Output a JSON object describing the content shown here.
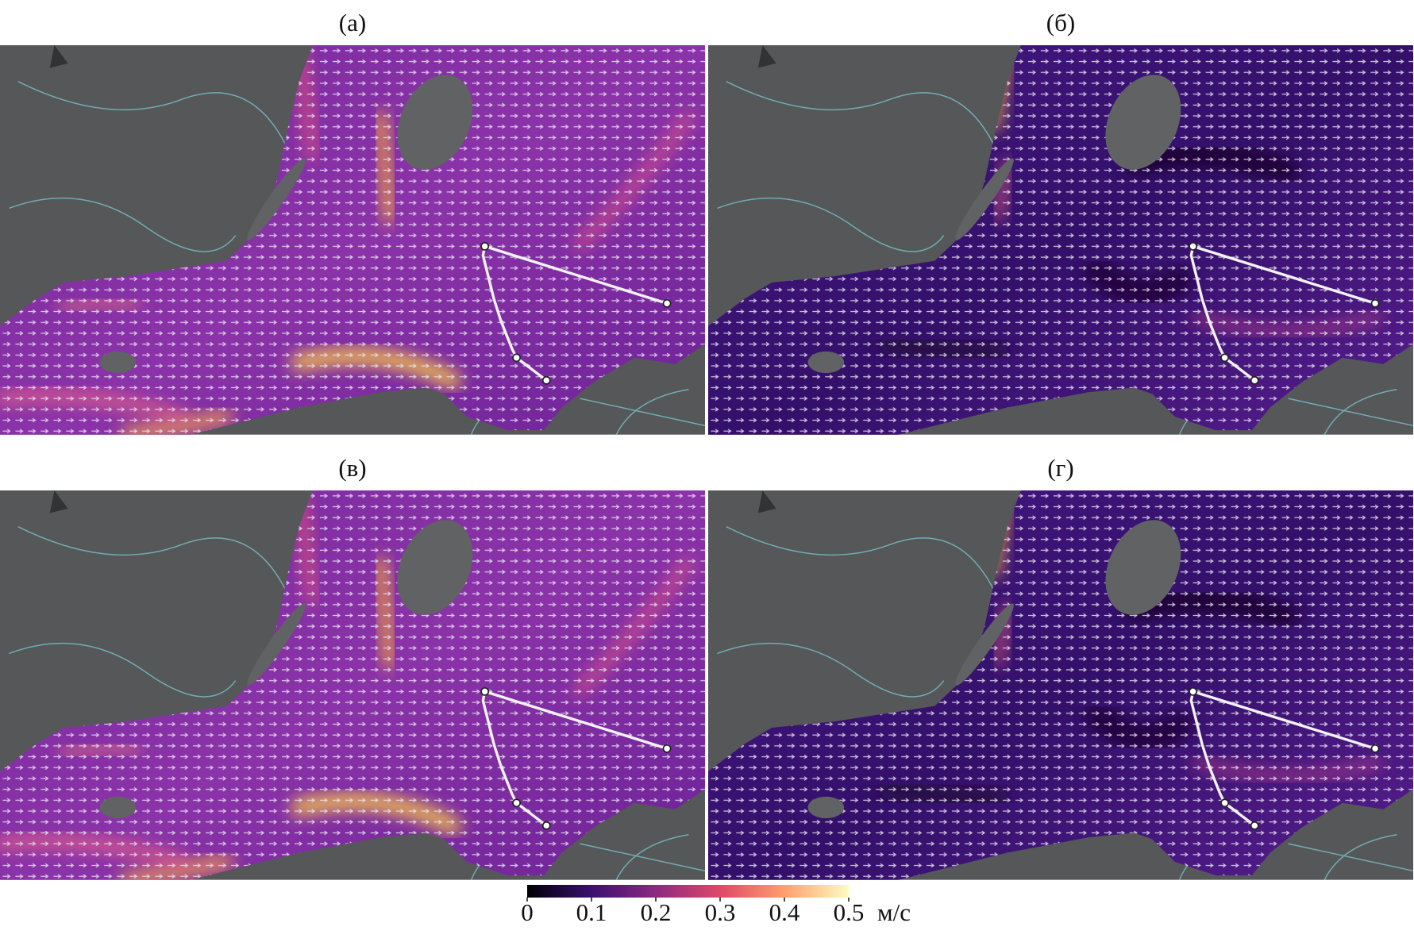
{
  "panels": [
    {
      "label": "(а)"
    },
    {
      "label": "(б)"
    },
    {
      "label": "(в)"
    },
    {
      "label": "(г)"
    }
  ],
  "colorbar": {
    "range": [
      0,
      0.5
    ],
    "ticks": [
      0,
      0.1,
      0.2,
      0.3,
      0.4,
      0.5
    ],
    "unit": "м/с"
  }
}
